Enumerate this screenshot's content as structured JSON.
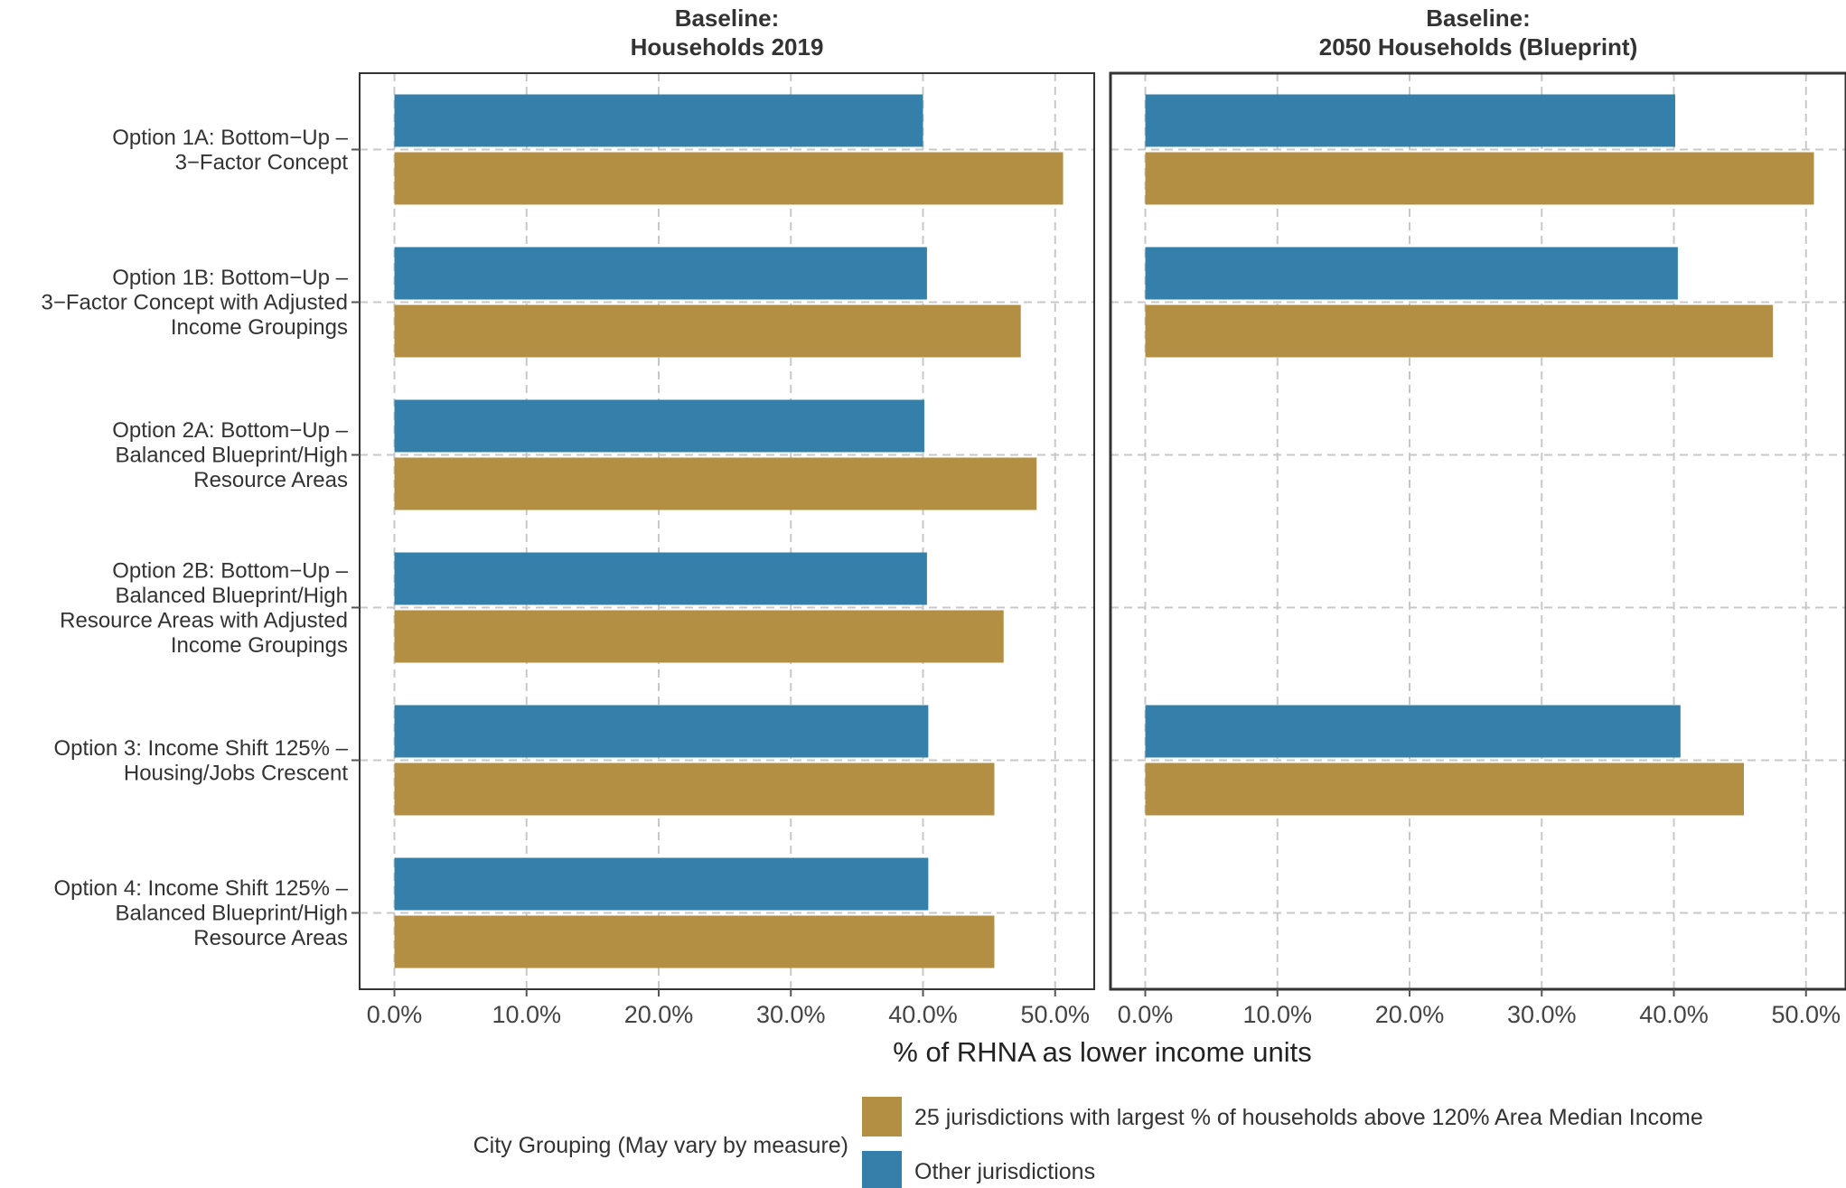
{
  "chart_data": {
    "type": "bar",
    "orientation": "horizontal",
    "xlabel": "% of RHNA as lower income units",
    "xlim": [
      0,
      52.5
    ],
    "xticks": [
      0,
      10,
      20,
      30,
      40,
      50
    ],
    "xtick_labels": [
      "0.0%",
      "10.0%",
      "20.0%",
      "30.0%",
      "40.0%",
      "50.0%"
    ],
    "grid": true,
    "categories": [
      [
        "Option 1A: Bottom−Up –",
        "3−Factor Concept"
      ],
      [
        "Option 1B: Bottom−Up –",
        "3−Factor Concept with Adjusted",
        "Income Groupings"
      ],
      [
        "Option 2A: Bottom−Up –",
        "Balanced Blueprint/High",
        "Resource Areas"
      ],
      [
        "Option 2B: Bottom−Up –",
        "Balanced Blueprint/High",
        "Resource Areas with Adjusted",
        "Income Groupings"
      ],
      [
        "Option 3: Income Shift 125% –",
        "Housing/Jobs Crescent"
      ],
      [
        "Option 4: Income Shift 125% –",
        "Balanced Blueprint/High",
        "Resource Areas"
      ]
    ],
    "legend": {
      "title": "City Grouping (May vary by measure)",
      "placement": "bottom",
      "entries": [
        {
          "name": "25 jurisdictions with largest % of households above 120% Area Median Income",
          "color": "#b38f44"
        },
        {
          "name": "Other jurisdictions",
          "color": "#3580aa"
        }
      ]
    },
    "panels": [
      {
        "title": [
          "Baseline:",
          "Households 2019"
        ],
        "series": [
          {
            "name": "Other jurisdictions",
            "color": "#3580aa",
            "values": [
              40.0,
              40.3,
              40.1,
              40.3,
              40.4,
              40.4
            ]
          },
          {
            "name": "25 jurisdictions with largest % of households above 120% Area Median Income",
            "color": "#b38f44",
            "values": [
              50.6,
              47.4,
              48.6,
              46.1,
              45.4,
              45.4
            ]
          }
        ]
      },
      {
        "title": [
          "Baseline:",
          "2050 Households (Blueprint)"
        ],
        "series": [
          {
            "name": "Other jurisdictions",
            "color": "#3580aa",
            "values": [
              40.1,
              40.3,
              null,
              null,
              40.5,
              null
            ]
          },
          {
            "name": "25 jurisdictions with largest % of households above 120% Area Median Income",
            "color": "#b38f44",
            "values": [
              50.6,
              47.5,
              null,
              null,
              45.3,
              null
            ]
          }
        ]
      }
    ]
  }
}
